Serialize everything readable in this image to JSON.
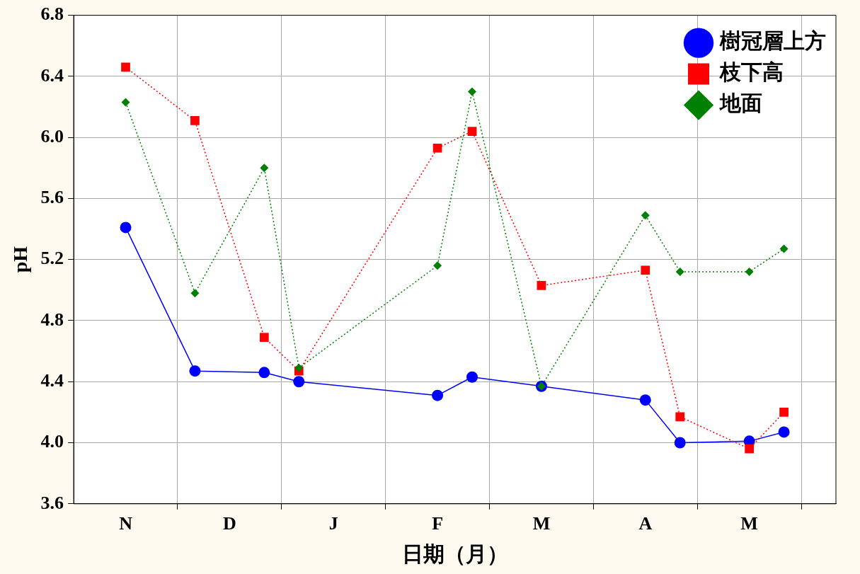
{
  "chart_data": {
    "type": "line",
    "xlabel": "日期（月）",
    "ylabel": "pH",
    "categories": [
      null,
      "N",
      null,
      null,
      "D",
      null,
      null,
      "J",
      null,
      null,
      "F",
      null,
      null,
      "M",
      null,
      null,
      "A",
      null,
      null,
      "M",
      null,
      null
    ],
    "series": [
      {
        "name": "樹冠層上方",
        "color": "#0000ff",
        "marker": "circle",
        "line_style": "solid",
        "values": [
          null,
          5.41,
          null,
          4.47,
          null,
          4.46,
          4.4,
          null,
          null,
          null,
          4.31,
          4.43,
          null,
          4.37,
          null,
          null,
          4.28,
          4.0,
          null,
          4.01,
          4.07,
          null
        ]
      },
      {
        "name": "枝下高",
        "color": "#ff0000",
        "marker": "square",
        "line_style": "dotted",
        "values": [
          null,
          6.46,
          null,
          6.11,
          null,
          4.69,
          4.47,
          null,
          null,
          null,
          5.93,
          6.04,
          null,
          5.03,
          null,
          null,
          5.13,
          4.17,
          null,
          3.96,
          4.2,
          null
        ]
      },
      {
        "name": "地面",
        "color": "#008000",
        "marker": "diamond",
        "line_style": "dotted",
        "values": [
          null,
          6.23,
          null,
          4.98,
          null,
          5.8,
          4.49,
          null,
          null,
          null,
          5.16,
          6.3,
          null,
          4.37,
          null,
          null,
          5.49,
          5.12,
          null,
          5.12,
          5.27,
          null
        ]
      }
    ],
    "ylim": [
      3.6,
      6.8
    ],
    "yticks": [
      {
        "value": 3.6,
        "label": "3.6"
      },
      {
        "value": 4,
        "label": "4.0"
      },
      {
        "value": 4.4,
        "label": "4.4"
      },
      {
        "value": 4.8,
        "label": "4.8"
      },
      {
        "value": 5.2,
        "label": "5.2"
      },
      {
        "value": 5.6,
        "label": "5.6"
      },
      {
        "value": 6,
        "label": "6.0"
      },
      {
        "value": 6.4,
        "label": "6.4"
      },
      {
        "value": 6.8,
        "label": "6.8"
      }
    ],
    "grid": true,
    "legend": "top right"
  }
}
